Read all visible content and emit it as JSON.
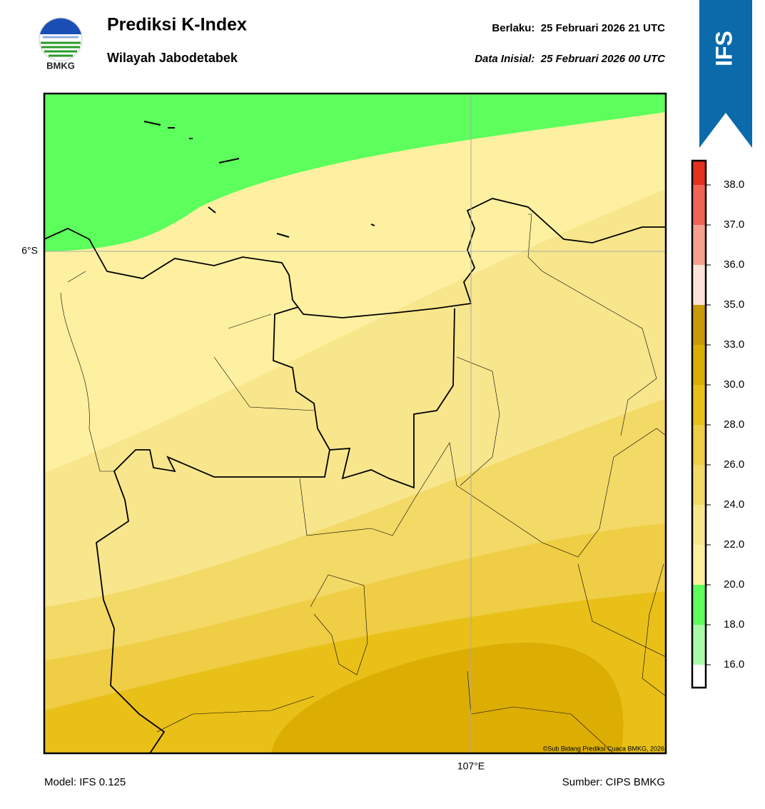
{
  "header": {
    "title": "Prediksi K-Index",
    "subtitle": "Wilayah Jabodetabek",
    "valid": "Berlaku:  25 Februari 2026 21 UTC",
    "init": "Data Inisial:  25 Februari 2026 00 UTC"
  },
  "logo": {
    "label": "BMKG"
  },
  "badge": {
    "label": "IFS"
  },
  "map": {
    "lat_label": "6°S",
    "lon_label": "107°E",
    "credit": "©Sub Bidang Prediksi Cuaca BMKG, 2026"
  },
  "footer": {
    "model": "Model: IFS 0.125",
    "source": "Sumber: CIPS BMKG"
  },
  "colorbar": {
    "colors": [
      "#ffffff",
      "#a8fca8",
      "#5cff5c",
      "#fdf0a0",
      "#f8e68c",
      "#f3d966",
      "#efcd45",
      "#e9c018",
      "#dcae04",
      "#c89a08",
      "#fde3da",
      "#f7a08e",
      "#f06454",
      "#e5301e"
    ],
    "ticks": [
      {
        "value": 16,
        "label": "16.0"
      },
      {
        "value": 18,
        "label": "18.0"
      },
      {
        "value": 20,
        "label": "20.0"
      },
      {
        "value": 22,
        "label": "22.0"
      },
      {
        "value": 24,
        "label": "24.0"
      },
      {
        "value": 26,
        "label": "26.0"
      },
      {
        "value": 28,
        "label": "28.0"
      },
      {
        "value": 30,
        "label": "30.0"
      },
      {
        "value": 33,
        "label": "33.0"
      },
      {
        "value": 35,
        "label": "35.0"
      },
      {
        "value": 36,
        "label": "36.0"
      },
      {
        "value": 37,
        "label": "37.0"
      },
      {
        "value": 38,
        "label": "38.0"
      }
    ]
  }
}
